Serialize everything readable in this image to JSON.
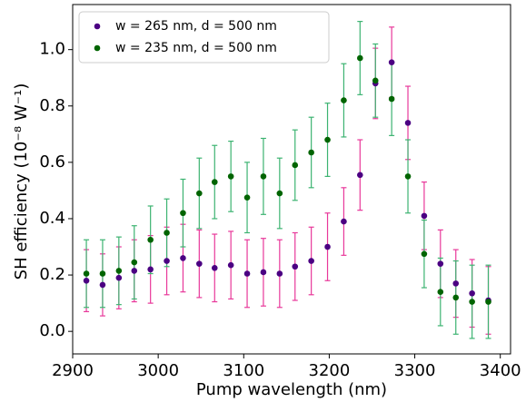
{
  "chart_data": {
    "type": "scatter",
    "xlabel": "Pump wavelength (nm)",
    "ylabel": "SH efficiency (10⁻⁸ W⁻¹)",
    "x": [
      2916,
      2935,
      2954,
      2972,
      2991,
      3010,
      3029,
      3048,
      3066,
      3085,
      3104,
      3123,
      3142,
      3160,
      3179,
      3198,
      3217,
      3236,
      3254,
      3273,
      3292,
      3311,
      3330,
      3348,
      3367,
      3386
    ],
    "series": [
      {
        "name": "w = 265 nm, d = 500 nm",
        "color": "#4b0082",
        "error_color": "#e8389a",
        "values": [
          0.18,
          0.165,
          0.19,
          0.215,
          0.22,
          0.25,
          0.26,
          0.24,
          0.225,
          0.235,
          0.205,
          0.21,
          0.205,
          0.23,
          0.25,
          0.3,
          0.39,
          0.555,
          0.88,
          0.955,
          0.74,
          0.41,
          0.24,
          0.17,
          0.135,
          0.11
        ],
        "errors": [
          0.11,
          0.11,
          0.11,
          0.11,
          0.12,
          0.12,
          0.12,
          0.12,
          0.12,
          0.12,
          0.12,
          0.12,
          0.12,
          0.12,
          0.12,
          0.12,
          0.12,
          0.125,
          0.125,
          0.125,
          0.13,
          0.12,
          0.12,
          0.12,
          0.12,
          0.12
        ]
      },
      {
        "name": "w = 235 nm, d = 500 nm",
        "color": "#006400",
        "error_color": "#3cb371",
        "values": [
          0.205,
          0.205,
          0.215,
          0.245,
          0.325,
          0.35,
          0.42,
          0.49,
          0.53,
          0.55,
          0.475,
          0.55,
          0.49,
          0.59,
          0.635,
          0.68,
          0.82,
          0.97,
          0.89,
          0.825,
          0.55,
          0.275,
          0.14,
          0.12,
          0.105,
          0.105
        ],
        "errors": [
          0.12,
          0.12,
          0.12,
          0.13,
          0.12,
          0.12,
          0.12,
          0.125,
          0.13,
          0.125,
          0.125,
          0.135,
          0.125,
          0.125,
          0.125,
          0.13,
          0.13,
          0.13,
          0.13,
          0.13,
          0.13,
          0.12,
          0.12,
          0.13,
          0.13,
          0.13
        ]
      }
    ],
    "xlim": [
      2900,
      3412
    ],
    "xticks": [
      2900,
      3000,
      3100,
      3200,
      3300,
      3400
    ],
    "ylim": [
      -0.08,
      1.16
    ],
    "yticks": [
      {
        "value": 0,
        "label": "0.0"
      },
      {
        "value": 0.2,
        "label": "0.2"
      },
      {
        "value": 0.4,
        "label": "0.4"
      },
      {
        "value": 0.6,
        "label": "0.6"
      },
      {
        "value": 0.8,
        "label": "0.8"
      },
      {
        "value": 1,
        "label": "1.0"
      }
    ],
    "legend": "upper left"
  }
}
